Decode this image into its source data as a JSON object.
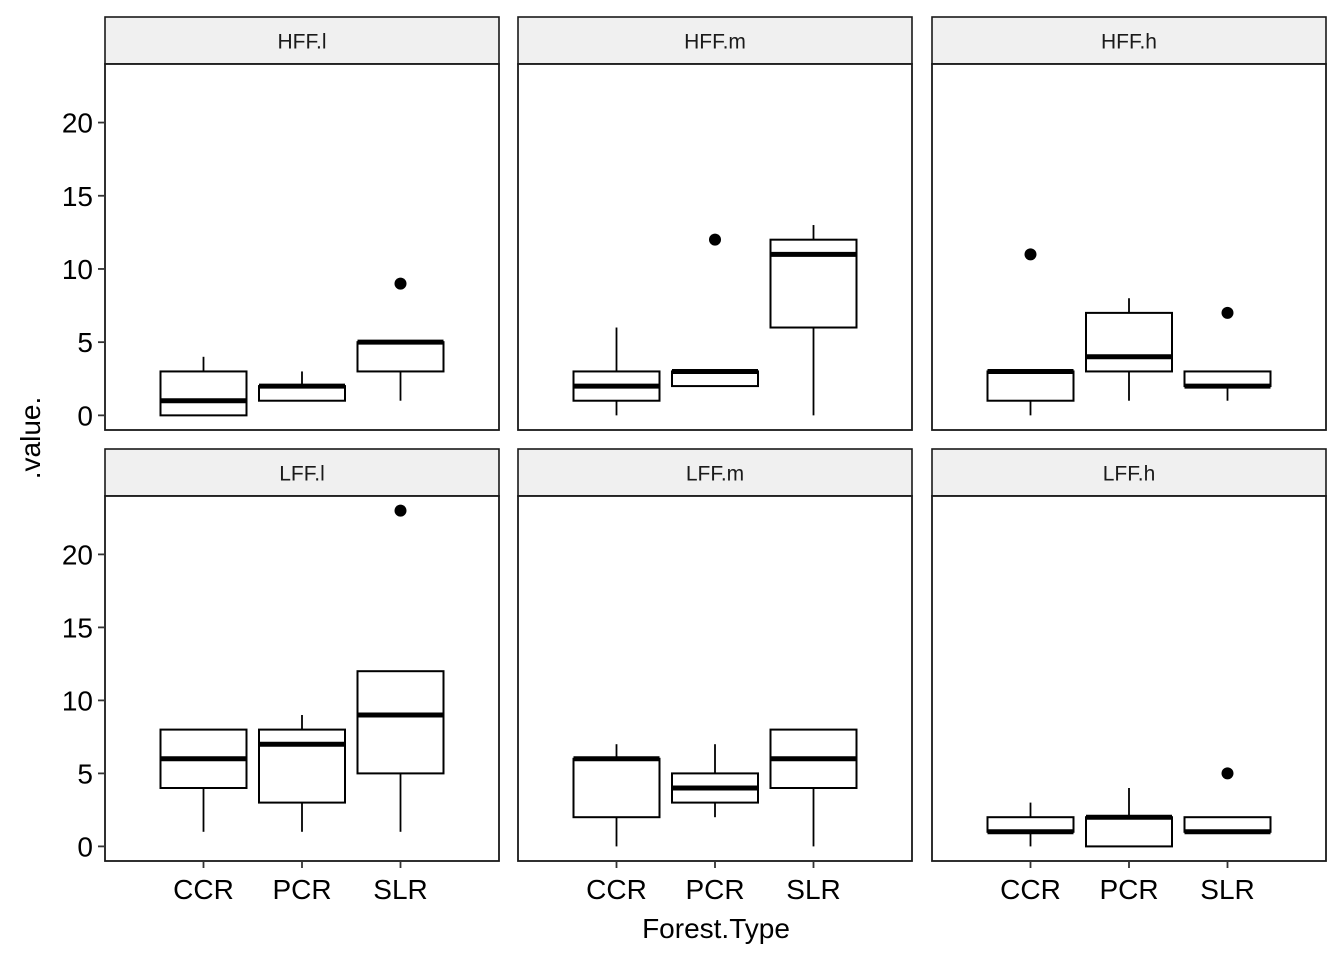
{
  "chart_data": {
    "type": "boxplot",
    "xlabel": "Forest.Type",
    "ylabel": ".value.",
    "categories": [
      "CCR",
      "PCR",
      "SLR"
    ],
    "ylim": [
      -1,
      24
    ],
    "yticks": [
      0,
      5,
      10,
      15,
      20
    ],
    "grid": false,
    "facet_layout": {
      "rows": 2,
      "cols": 3
    },
    "colors": {
      "box_fill": "#ffffff",
      "line": "#000000",
      "strip_fill": "#f0f0f0",
      "panel_border": "#1a1a1a"
    },
    "facets": [
      {
        "name": "HFF.l",
        "boxes": [
          {
            "category": "CCR",
            "min": 0,
            "q1": 0,
            "median": 1,
            "q3": 3,
            "max": 4,
            "outliers": []
          },
          {
            "category": "PCR",
            "min": 1,
            "q1": 1,
            "median": 2,
            "q3": 2,
            "max": 3,
            "outliers": []
          },
          {
            "category": "SLR",
            "min": 1,
            "q1": 3,
            "median": 5,
            "q3": 5,
            "max": 5,
            "outliers": [
              9
            ]
          }
        ]
      },
      {
        "name": "HFF.m",
        "boxes": [
          {
            "category": "CCR",
            "min": 0,
            "q1": 1,
            "median": 2,
            "q3": 3,
            "max": 6,
            "outliers": []
          },
          {
            "category": "PCR",
            "min": 2,
            "q1": 2,
            "median": 3,
            "q3": 3,
            "max": 3,
            "outliers": [
              12
            ]
          },
          {
            "category": "SLR",
            "min": 0,
            "q1": 6,
            "median": 11,
            "q3": 12,
            "max": 13,
            "outliers": []
          }
        ]
      },
      {
        "name": "HFF.h",
        "boxes": [
          {
            "category": "CCR",
            "min": 0,
            "q1": 1,
            "median": 3,
            "q3": 3,
            "max": 3,
            "outliers": [
              11
            ]
          },
          {
            "category": "PCR",
            "min": 1,
            "q1": 3,
            "median": 4,
            "q3": 7,
            "max": 8,
            "outliers": []
          },
          {
            "category": "SLR",
            "min": 1,
            "q1": 2,
            "median": 2,
            "q3": 3,
            "max": 3,
            "outliers": [
              7
            ]
          }
        ]
      },
      {
        "name": "LFF.l",
        "boxes": [
          {
            "category": "CCR",
            "min": 1,
            "q1": 4,
            "median": 6,
            "q3": 8,
            "max": 8,
            "outliers": []
          },
          {
            "category": "PCR",
            "min": 1,
            "q1": 3,
            "median": 7,
            "q3": 8,
            "max": 9,
            "outliers": []
          },
          {
            "category": "SLR",
            "min": 1,
            "q1": 5,
            "median": 9,
            "q3": 12,
            "max": 12,
            "outliers": [
              23
            ]
          }
        ]
      },
      {
        "name": "LFF.m",
        "boxes": [
          {
            "category": "CCR",
            "min": 0,
            "q1": 2,
            "median": 6,
            "q3": 6,
            "max": 7,
            "outliers": []
          },
          {
            "category": "PCR",
            "min": 2,
            "q1": 3,
            "median": 4,
            "q3": 5,
            "max": 7,
            "outliers": []
          },
          {
            "category": "SLR",
            "min": 0,
            "q1": 4,
            "median": 6,
            "q3": 8,
            "max": 8,
            "outliers": []
          }
        ]
      },
      {
        "name": "LFF.h",
        "boxes": [
          {
            "category": "CCR",
            "min": 0,
            "q1": 1,
            "median": 1,
            "q3": 2,
            "max": 3,
            "outliers": []
          },
          {
            "category": "PCR",
            "min": 0,
            "q1": 0,
            "median": 2,
            "q3": 2,
            "max": 4,
            "outliers": []
          },
          {
            "category": "SLR",
            "min": 1,
            "q1": 1,
            "median": 1,
            "q3": 2,
            "max": 2,
            "outliers": [
              5
            ]
          }
        ]
      }
    ]
  }
}
